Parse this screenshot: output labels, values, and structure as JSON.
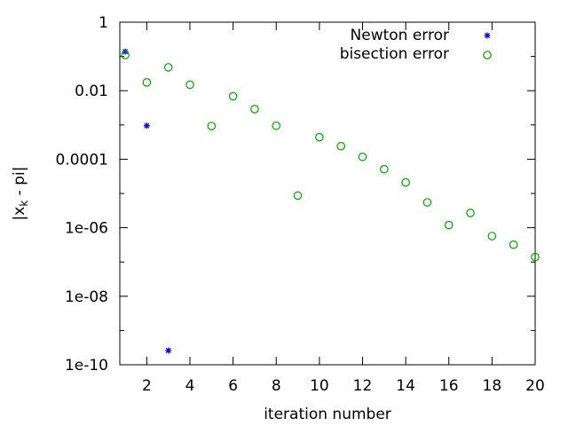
{
  "chart_data": {
    "type": "scatter",
    "title": "",
    "xlabel": "iteration number",
    "ylabel_main": "|x",
    "ylabel_sub": "k",
    "ylabel_rest": " - pi|",
    "x_scale": "linear",
    "y_scale": "log",
    "xlim": [
      0.75,
      20
    ],
    "ylim": [
      1e-10,
      1
    ],
    "xticks": [
      2,
      4,
      6,
      8,
      10,
      12,
      14,
      16,
      18,
      20
    ],
    "xtick_labels": [
      "2",
      "4",
      "6",
      "8",
      "10",
      "12",
      "14",
      "16",
      "18",
      "20"
    ],
    "yticks": [
      1e-10,
      1e-08,
      1e-06,
      0.0001,
      0.01,
      1
    ],
    "ytick_labels": [
      "1e-10",
      "1e-08",
      "1e-06",
      "0.0001",
      "0.01",
      "1"
    ],
    "grid": false,
    "legend_position": "top-right",
    "series": [
      {
        "name": "Newton error",
        "marker": "star",
        "color": "#0000cc",
        "x": [
          1,
          2,
          3
        ],
        "y": [
          0.138,
          0.00095,
          2.6e-10
        ]
      },
      {
        "name": "bisection error",
        "marker": "circle",
        "color": "#00a000",
        "x": [
          1,
          2,
          3,
          4,
          5,
          6,
          7,
          8,
          9,
          10,
          11,
          12,
          13,
          14,
          15,
          16,
          17,
          18,
          19,
          20
        ],
        "y": [
          0.11,
          0.0175,
          0.048,
          0.015,
          0.00093,
          0.0069,
          0.0029,
          0.00095,
          8.7e-06,
          0.00044,
          0.00024,
          0.000117,
          5.1e-05,
          2.1e-05,
          5.5e-06,
          1.2e-06,
          2.7e-06,
          5.7e-07,
          3.2e-07,
          1.4e-07
        ]
      }
    ]
  }
}
